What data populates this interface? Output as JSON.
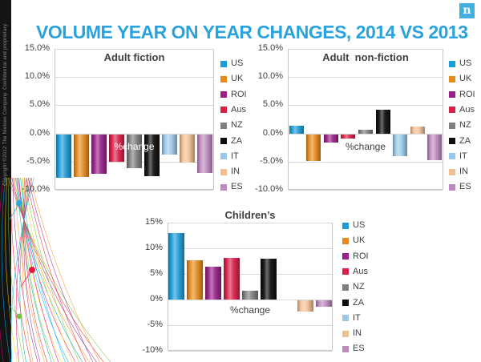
{
  "slide": {
    "title": "VOLUME YEAR ON YEAR CHANGES, 2014 VS 2013",
    "title_color": "#2aa2dc",
    "logo_letter": "n",
    "logo_bg_color": "#41b0e1",
    "sidebar_copyright": "Copyright ©2012 The Nielsen Company. Confidential and proprietary."
  },
  "series_colors": {
    "US": "#1e9cd7",
    "UK": "#e68a1e",
    "ROI": "#992089",
    "Aus": "#d81f48",
    "NZ": "#7f7f7f",
    "ZA": "#0d0d0d",
    "IT": "#9cc9e9",
    "IN": "#f3c094",
    "ES": "#bd8abf"
  },
  "decoration": {
    "palette": [
      "#e6007e",
      "#00aeef",
      "#ffd400",
      "#7ac143",
      "#ed1c24",
      "#92278f",
      "#f7941d",
      "#00a78e"
    ],
    "dot_colors": [
      "#29abe2",
      "#e8173d",
      "#7ac143"
    ]
  },
  "chart_data": [
    {
      "type": "bar",
      "title": "Adult fiction",
      "categories": [
        "US",
        "UK",
        "ROI",
        "Aus",
        "NZ",
        "ZA",
        "IT",
        "IN",
        "ES"
      ],
      "values": [
        -7.9,
        -7.7,
        -7.2,
        -5.1,
        -6.2,
        -7.6,
        -3.8,
        -5.2,
        -7.0
      ],
      "xlabel": "%change",
      "xlabel_color": "#ffffff",
      "ylim": [
        -10,
        15
      ],
      "grid": true,
      "legend_position": "right",
      "yticks": [
        {
          "label": "15.0%",
          "v": 15
        },
        {
          "label": "10.0%",
          "v": 10
        },
        {
          "label": "5.0%",
          "v": 5
        },
        {
          "label": "0.0%",
          "v": 0
        },
        {
          "label": "-5.0%",
          "v": -5
        },
        {
          "label": "-10.0%",
          "v": -10
        }
      ]
    },
    {
      "type": "bar",
      "title": "Adult  non-fiction",
      "categories": [
        "US",
        "UK",
        "ROI",
        "Aus",
        "NZ",
        "ZA",
        "IT",
        "IN",
        "ES"
      ],
      "values": [
        1.4,
        -4.9,
        -1.6,
        -0.9,
        0.7,
        4.2,
        -4.1,
        1.2,
        -4.7
      ],
      "xlabel": "%change",
      "xlabel_color": "#3f3f3f",
      "ylim": [
        -10,
        15
      ],
      "grid": true,
      "legend_position": "right",
      "yticks": [
        {
          "label": "15.0%",
          "v": 15
        },
        {
          "label": "10.0%",
          "v": 10
        },
        {
          "label": "5.0%",
          "v": 5
        },
        {
          "label": "0.0%",
          "v": 0
        },
        {
          "label": "-5.0%",
          "v": -5
        },
        {
          "label": "-10.0%",
          "v": -10
        }
      ]
    },
    {
      "type": "bar",
      "title": "Children’s",
      "categories": [
        "US",
        "UK",
        "ROI",
        "Aus",
        "NZ",
        "ZA",
        "IT",
        "IN",
        "ES"
      ],
      "values": [
        13.0,
        7.7,
        6.4,
        8.2,
        1.7,
        8.0,
        0.0,
        -2.3,
        -1.4
      ],
      "xlabel": "%change",
      "xlabel_color": "#3f3f3f",
      "ylim": [
        -10,
        15
      ],
      "grid": true,
      "legend_position": "right",
      "yticks": [
        {
          "label": "15%",
          "v": 15
        },
        {
          "label": "10%",
          "v": 10
        },
        {
          "label": "5%",
          "v": 5
        },
        {
          "label": "0%",
          "v": 0
        },
        {
          "label": "-5%",
          "v": -5
        },
        {
          "label": "-10%",
          "v": -10
        }
      ]
    }
  ]
}
